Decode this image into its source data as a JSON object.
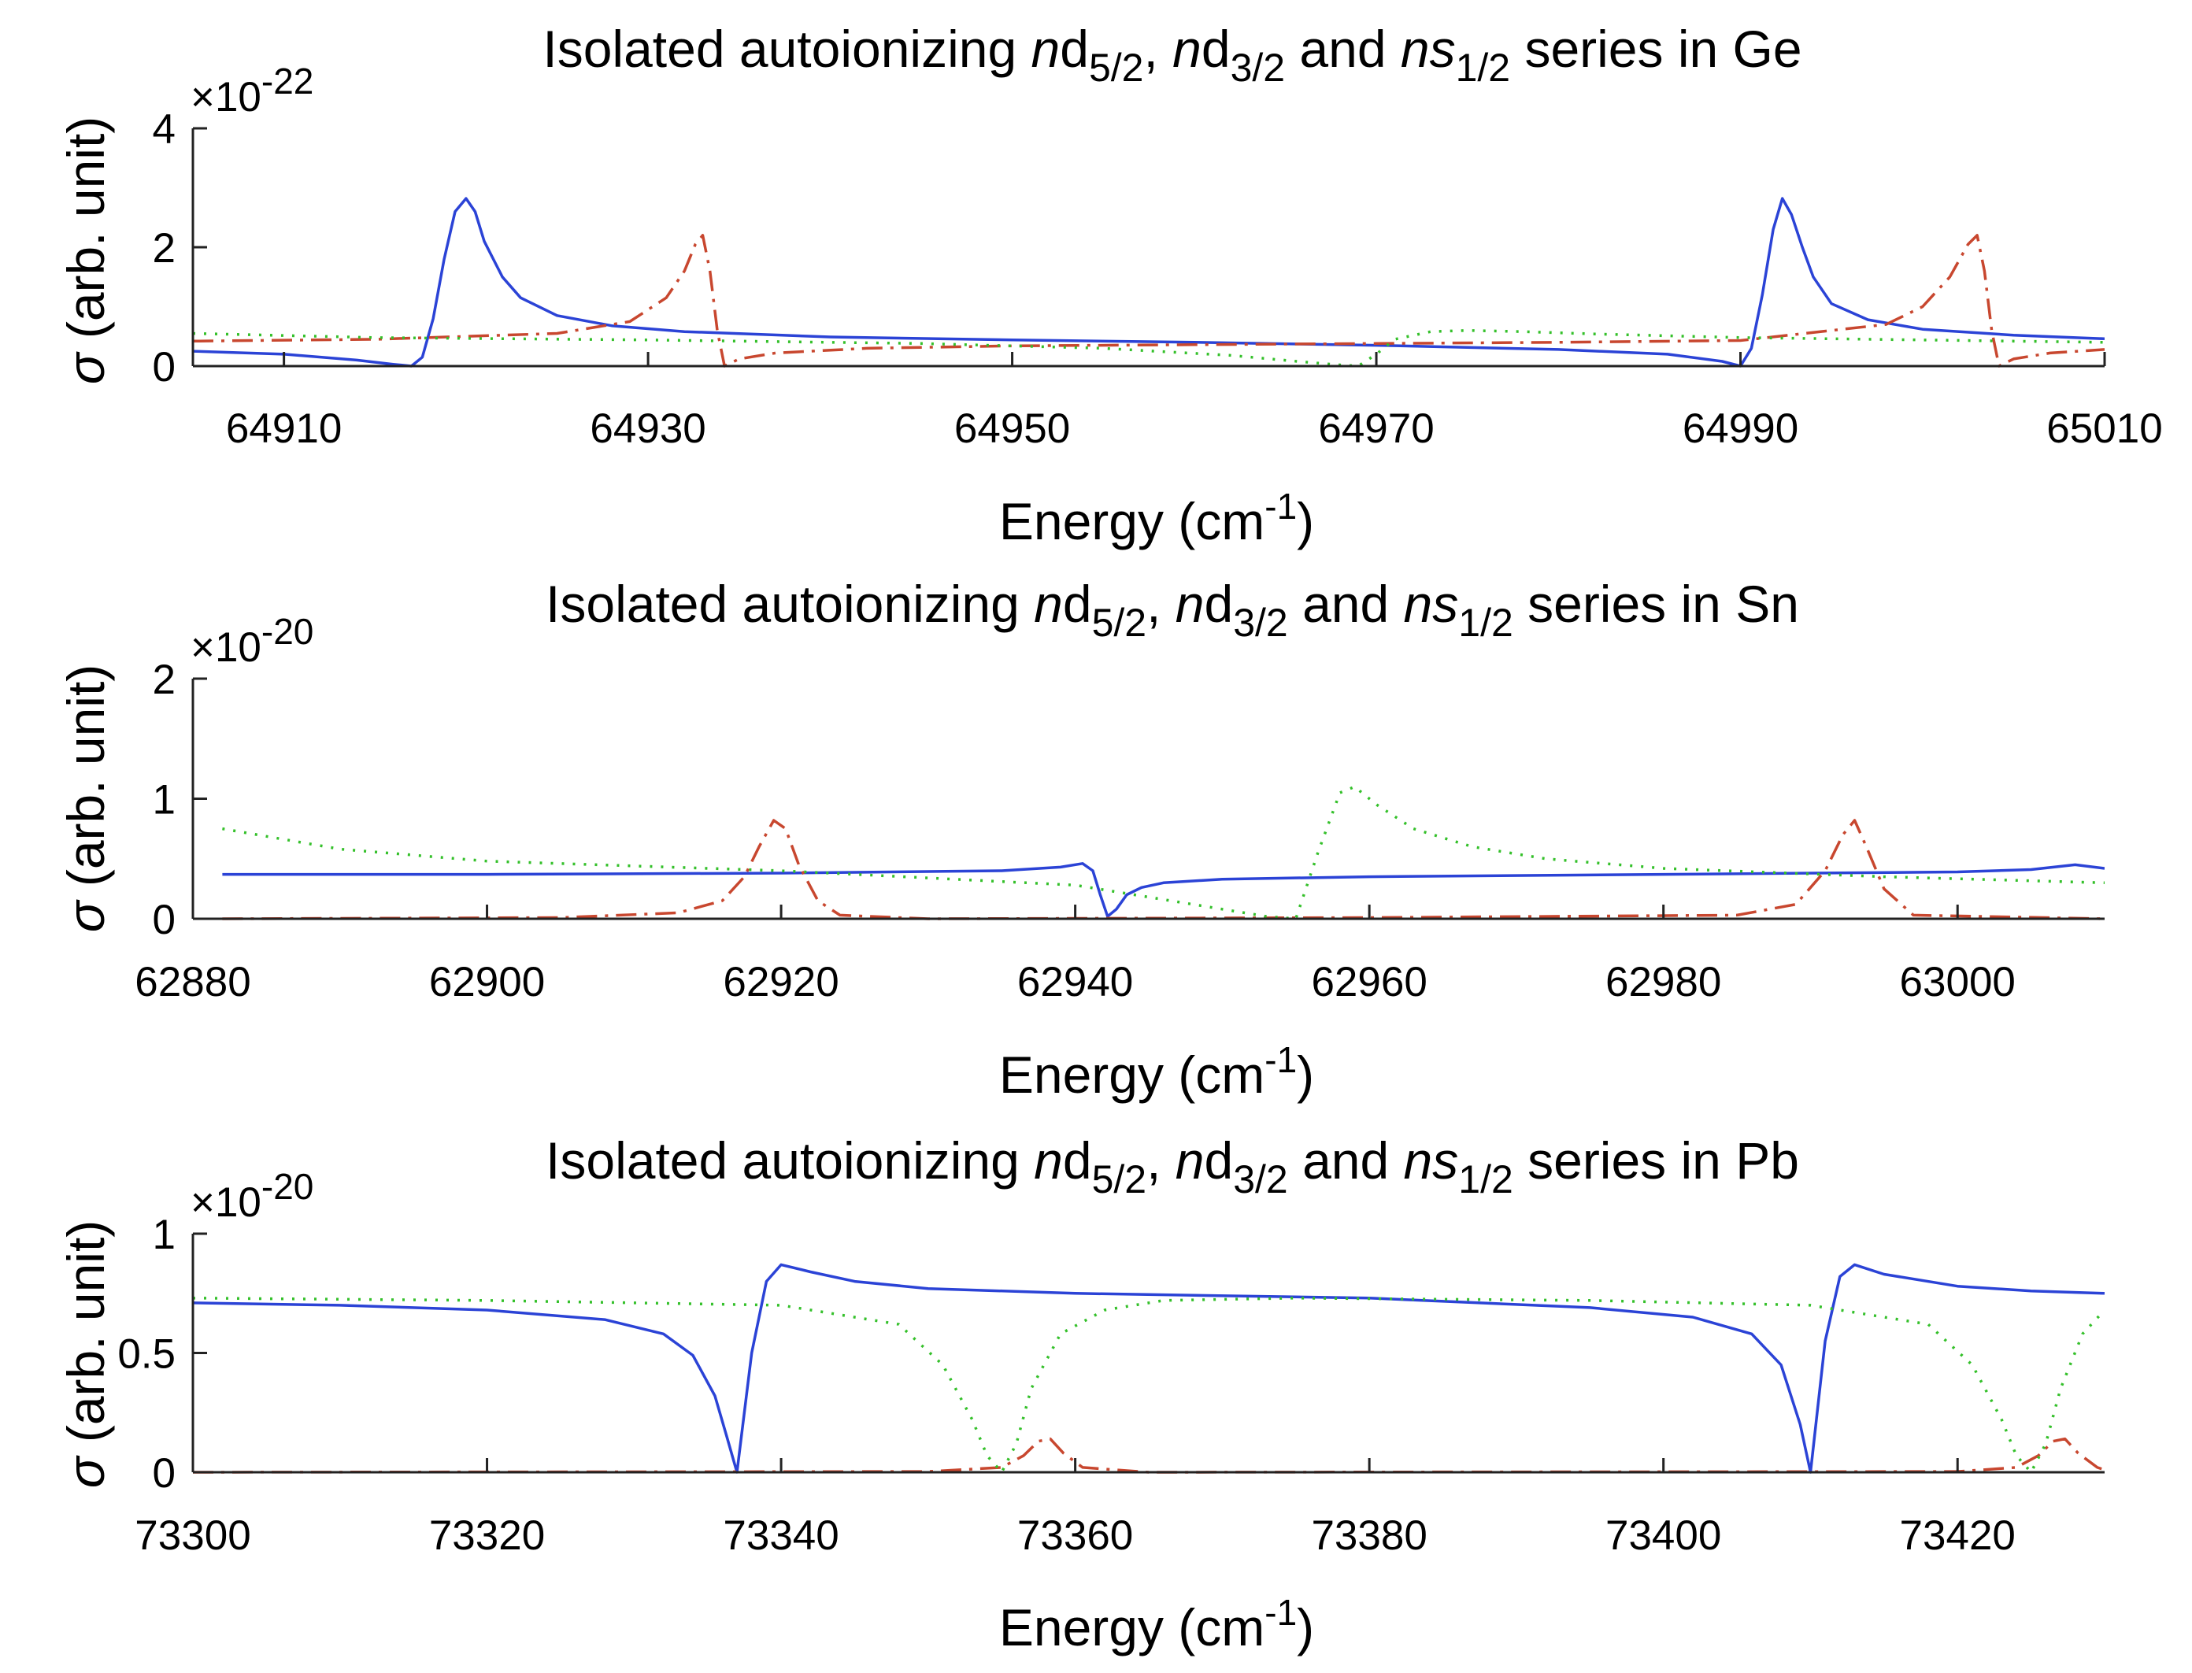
{
  "colors": {
    "nd52": "#2b43d6",
    "nd32": "#c8472f",
    "ns12": "#34c02a",
    "axis": "#222222"
  },
  "chart_data": [
    {
      "type": "line",
      "title": {
        "pre": "Isolated autoionizing ",
        "n1": "n",
        "d1": "d",
        "s1": "5/2",
        "comma1": ", ",
        "n2": "n",
        "d2": "d",
        "s2": "3/2",
        "and": " and ",
        "n3": "n",
        "s3l": "s",
        "s3": "1/2",
        "post": " series in Ge"
      },
      "xlabel": {
        "main": "Energy (cm",
        "sup": "-1",
        "close": ")"
      },
      "ylabel": {
        "sym": "σ",
        "rest": " (arb. unit)"
      },
      "exponent": {
        "times": "×",
        "base": "10",
        "power": "-22"
      },
      "xlim": [
        64905,
        65010
      ],
      "ylim": [
        0,
        4
      ],
      "xticks": [
        64910,
        64930,
        64950,
        64970,
        64990,
        65010
      ],
      "yticks": [
        0,
        2,
        4
      ],
      "series": [
        {
          "name": "nd5/2",
          "style": "solid",
          "color": "#2b43d6",
          "x": [
            64905,
            64910,
            64914,
            64916,
            64917,
            64917.6,
            64918.2,
            64918.8,
            64919.4,
            64920,
            64920.5,
            64921,
            64922,
            64923,
            64925,
            64928,
            64932,
            64940,
            64950,
            64960,
            64970,
            64980,
            64986,
            64989,
            64990,
            64990.6,
            64991.2,
            64991.8,
            64992.3,
            64992.8,
            64993.4,
            64994,
            64995,
            64997,
            65000,
            65005,
            65010
          ],
          "y": [
            0.25,
            0.2,
            0.1,
            0.03,
            0,
            0.15,
            0.8,
            1.8,
            2.6,
            2.82,
            2.6,
            2.1,
            1.5,
            1.15,
            0.85,
            0.68,
            0.58,
            0.49,
            0.44,
            0.4,
            0.35,
            0.28,
            0.2,
            0.08,
            0,
            0.3,
            1.2,
            2.3,
            2.82,
            2.55,
            2.0,
            1.5,
            1.05,
            0.78,
            0.62,
            0.52,
            0.46
          ]
        },
        {
          "name": "nd3/2",
          "style": "dashdot",
          "color": "#c8472f",
          "x": [
            64905,
            64915,
            64925,
            64929,
            64931,
            64932,
            64932.6,
            64933,
            64933.4,
            64933.8,
            64934.2,
            64935,
            64937,
            64942,
            64950,
            64960,
            64970,
            64980,
            64990,
            64998,
            65000,
            65001.5,
            65002.5,
            65003,
            65003.4,
            65003.8,
            65004.2,
            65005,
            65007,
            65010
          ],
          "y": [
            0.42,
            0.45,
            0.55,
            0.75,
            1.15,
            1.6,
            2.05,
            2.2,
            1.6,
            0.6,
            0,
            0.12,
            0.22,
            0.3,
            0.34,
            0.36,
            0.38,
            0.4,
            0.43,
            0.7,
            1.0,
            1.5,
            2.05,
            2.2,
            1.6,
            0.6,
            0,
            0.12,
            0.22,
            0.28
          ]
        },
        {
          "name": "ns1/2",
          "style": "dotted",
          "color": "#34c02a",
          "x": [
            64905,
            64915,
            64930,
            64945,
            64955,
            64962,
            64966,
            64968,
            64969,
            64970,
            64971,
            64973,
            64975,
            64978,
            64982,
            64990,
            65000,
            65010
          ],
          "y": [
            0.55,
            0.48,
            0.44,
            0.38,
            0.3,
            0.18,
            0.07,
            0.02,
            0,
            0.2,
            0.45,
            0.58,
            0.6,
            0.58,
            0.54,
            0.48,
            0.44,
            0.4
          ]
        }
      ]
    },
    {
      "type": "line",
      "title": {
        "pre": "Isolated autoionizing ",
        "n1": "n",
        "d1": "d",
        "s1": "5/2",
        "comma1": ", ",
        "n2": "n",
        "d2": "d",
        "s2": "3/2",
        "and": " and ",
        "n3": "n",
        "s3l": "s",
        "s3": "1/2",
        "post": " series in Sn"
      },
      "xlabel": {
        "main": "Energy (cm",
        "sup": "-1",
        "close": ")"
      },
      "ylabel": {
        "sym": "σ",
        "rest": " (arb. unit)"
      },
      "exponent": {
        "times": "×",
        "base": "10",
        "power": "-20"
      },
      "xlim": [
        62880,
        63010
      ],
      "ylim": [
        0,
        2
      ],
      "xticks": [
        62880,
        62900,
        62920,
        62940,
        62960,
        62980,
        63000
      ],
      "yticks": [
        0,
        1,
        2
      ],
      "series": [
        {
          "name": "nd5/2",
          "style": "solid",
          "color": "#2b43d6",
          "x": [
            62882,
            62900,
            62920,
            62935,
            62939,
            62940.5,
            62941.2,
            62941.7,
            62942.2,
            62942.8,
            62943.5,
            62944.5,
            62946,
            62950,
            62960,
            62980,
            63000,
            63005,
            63008,
            63010
          ],
          "y": [
            0.37,
            0.37,
            0.38,
            0.4,
            0.43,
            0.46,
            0.4,
            0.2,
            0.02,
            0.08,
            0.2,
            0.26,
            0.3,
            0.33,
            0.35,
            0.37,
            0.39,
            0.41,
            0.45,
            0.42
          ]
        },
        {
          "name": "nd3/2",
          "style": "dashdot",
          "color": "#c8472f",
          "x": [
            62882,
            62905,
            62913,
            62916,
            62917.5,
            62918.5,
            62919.5,
            62920.3,
            62921.2,
            62922.5,
            62924,
            62930,
            62960,
            62985,
            62989,
            62991,
            62992.2,
            62993,
            62993.8,
            62995,
            62997,
            63010
          ],
          "y": [
            0,
            0.01,
            0.05,
            0.15,
            0.35,
            0.6,
            0.82,
            0.75,
            0.45,
            0.15,
            0.03,
            0,
            0.01,
            0.03,
            0.12,
            0.4,
            0.7,
            0.82,
            0.6,
            0.25,
            0.03,
            0
          ]
        },
        {
          "name": "ns1/2",
          "style": "dotted",
          "color": "#34c02a",
          "x": [
            62882,
            62890,
            62900,
            62920,
            62940,
            62945,
            62950,
            62953,
            62955,
            62956.5,
            62958,
            62959,
            62960.5,
            62963,
            62967,
            62972,
            62980,
            62995,
            63010
          ],
          "y": [
            0.75,
            0.58,
            0.48,
            0.4,
            0.28,
            0.18,
            0.08,
            0.02,
            0,
            0.55,
            1.05,
            1.1,
            0.95,
            0.75,
            0.6,
            0.5,
            0.42,
            0.35,
            0.3
          ]
        }
      ]
    },
    {
      "type": "line",
      "title": {
        "pre": "Isolated autoionizing ",
        "n1": "n",
        "d1": "d",
        "s1": "5/2",
        "comma1": ", ",
        "n2": "n",
        "d2": "d",
        "s2": "3/2",
        "and": " and ",
        "n3": "n",
        "s3l": "s",
        "s3": "1/2",
        "post": " series in Pb"
      },
      "xlabel": {
        "main": "Energy (cm",
        "sup": "-1",
        "close": ")"
      },
      "ylabel": {
        "sym": "σ",
        "rest": " (arb. unit)"
      },
      "exponent": {
        "times": "×",
        "base": "10",
        "power": "-20"
      },
      "xlim": [
        73300,
        73430
      ],
      "ylim": [
        0,
        1
      ],
      "xticks": [
        73300,
        73320,
        73340,
        73360,
        73380,
        73400,
        73420
      ],
      "yticks": [
        0,
        0.5,
        1
      ],
      "series": [
        {
          "name": "nd5/2",
          "style": "solid",
          "color": "#2b43d6",
          "x": [
            73300,
            73310,
            73320,
            73328,
            73332,
            73334,
            73335.5,
            73336.3,
            73337,
            73338,
            73339,
            73340,
            73342,
            73345,
            73350,
            73360,
            73380,
            73395,
            73402,
            73406,
            73408,
            73409.3,
            73410,
            73411,
            73412,
            73413,
            73415,
            73420,
            73425,
            73430
          ],
          "y": [
            0.71,
            0.7,
            0.68,
            0.64,
            0.58,
            0.49,
            0.32,
            0.15,
            0,
            0.5,
            0.8,
            0.87,
            0.84,
            0.8,
            0.77,
            0.75,
            0.73,
            0.69,
            0.65,
            0.58,
            0.45,
            0.2,
            0,
            0.55,
            0.82,
            0.87,
            0.83,
            0.78,
            0.76,
            0.75
          ]
        },
        {
          "name": "nd3/2",
          "style": "dashdot",
          "color": "#c8472f",
          "x": [
            73300,
            73350,
            73355,
            73356.5,
            73357.5,
            73358.3,
            73359.2,
            73360.5,
            73365,
            73420,
            73424,
            73425.5,
            73426.5,
            73427.3,
            73428.2,
            73429.5,
            73430
          ],
          "y": [
            0,
            0.003,
            0.02,
            0.07,
            0.13,
            0.14,
            0.08,
            0.02,
            0,
            0.003,
            0.02,
            0.07,
            0.13,
            0.14,
            0.08,
            0.02,
            0.01
          ]
        },
        {
          "name": "ns1/2",
          "style": "dotted",
          "color": "#34c02a",
          "x": [
            73300,
            73320,
            73340,
            73348,
            73351,
            73353,
            73354,
            73355,
            73356,
            73357,
            73359,
            73362,
            73366,
            73375,
            73395,
            73410,
            73418,
            73421,
            73423,
            73424,
            73425,
            73426,
            73427,
            73428.5,
            73430
          ],
          "y": [
            0.73,
            0.72,
            0.7,
            0.62,
            0.45,
            0.22,
            0.07,
            0,
            0.12,
            0.35,
            0.58,
            0.68,
            0.72,
            0.73,
            0.72,
            0.7,
            0.62,
            0.45,
            0.22,
            0.07,
            0,
            0.12,
            0.35,
            0.58,
            0.68
          ]
        }
      ]
    }
  ]
}
